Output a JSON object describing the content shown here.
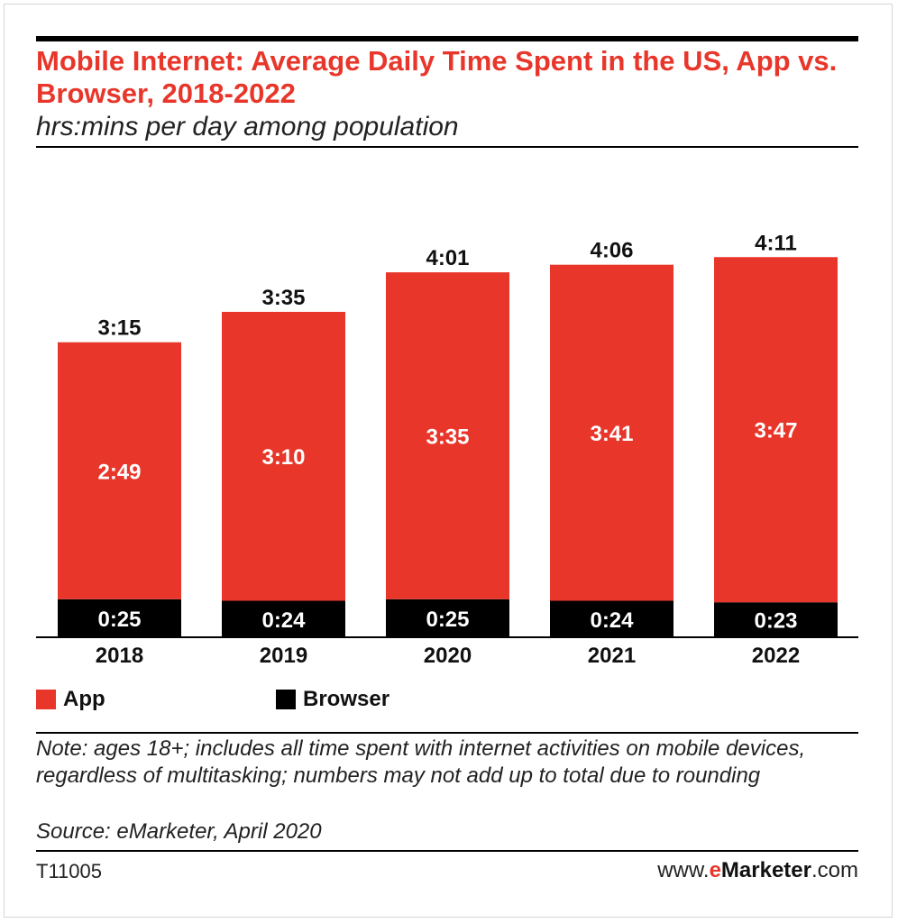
{
  "header": {
    "title": "Mobile Internet: Average Daily Time Spent in the US, App vs. Browser, 2018-2022",
    "subtitle": "hrs:mins per day among population"
  },
  "legend": {
    "app_label": "App",
    "browser_label": "Browser"
  },
  "footer": {
    "note": "Note: ages 18+; includes all time spent with internet activities on mobile devices, regardless of multitasking; numbers may not add up to total due to rounding",
    "source": "Source: eMarketer, April 2020",
    "code": "T11005",
    "site_prefix": "www.",
    "site_brand_e": "e",
    "site_brand_rest": "Marketer",
    "site_suffix": ".com"
  },
  "colors": {
    "app": "#e8362a",
    "browser": "#000000",
    "title": "#e8362a"
  },
  "chart_data": {
    "type": "bar",
    "stacked": true,
    "title": "Mobile Internet: Average Daily Time Spent in the US, App vs. Browser, 2018-2022",
    "subtitle": "hrs:mins per day among population",
    "categories": [
      "2018",
      "2019",
      "2020",
      "2021",
      "2022"
    ],
    "series": [
      {
        "name": "Browser",
        "values": [
          25,
          24,
          25,
          24,
          23
        ],
        "labels": [
          "0:25",
          "0:24",
          "0:25",
          "0:24",
          "0:23"
        ],
        "color": "#000000"
      },
      {
        "name": "App",
        "values": [
          169,
          190,
          215,
          221,
          227
        ],
        "labels": [
          "2:49",
          "3:10",
          "3:35",
          "3:41",
          "3:47"
        ],
        "color": "#e8362a"
      }
    ],
    "totals": [
      195,
      215,
      241,
      246,
      251
    ],
    "total_labels": [
      "3:15",
      "3:35",
      "4:01",
      "4:06",
      "4:11"
    ],
    "unit": "minutes",
    "legend_position": "bottom-left",
    "grid": false
  }
}
